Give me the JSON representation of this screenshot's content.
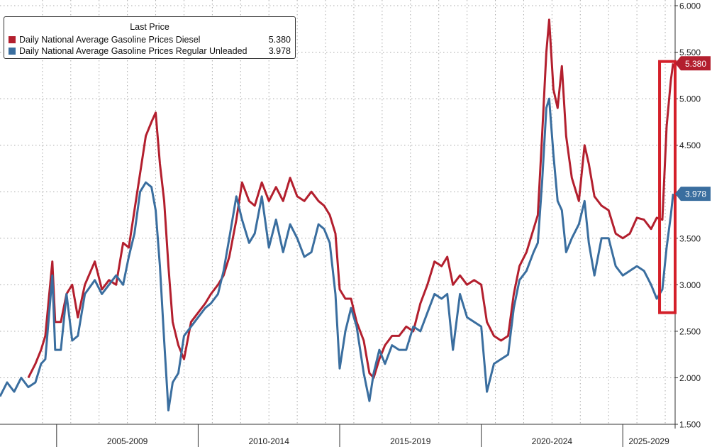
{
  "chart_data": {
    "type": "line",
    "title": "",
    "xlabel": "",
    "ylabel": "",
    "x_period_labels": [
      "2005-2009",
      "2010-2014",
      "2015-2019",
      "2020-2024",
      "2025-2029"
    ],
    "x_range": [
      2003.0,
      2026.85
    ],
    "ylim": [
      1.5,
      6.0
    ],
    "y_ticks": [
      "1.500",
      "2.000",
      "2.500",
      "3.000",
      "3.500",
      "4.000",
      "4.500",
      "5.000",
      "5.500",
      "6.000"
    ],
    "y_axis_position": "right",
    "grid": true,
    "legend": {
      "title": "Last Price",
      "placement": "top-left",
      "items": [
        {
          "name": "Daily National Average Gasoline Prices Diesel",
          "last": "5.380"
        },
        {
          "name": "Daily National Average Gasoline Prices Regular Unleaded",
          "last": "3.978"
        }
      ]
    },
    "highlight_box": {
      "x0": 2026.3,
      "x1": 2026.85,
      "y0": 2.7,
      "y1": 5.4
    },
    "series": [
      {
        "name": "Daily National Average Gasoline Prices Diesel",
        "color": "#b31f2e",
        "last_label": "5.380",
        "points": [
          [
            2004.0,
            2.0
          ],
          [
            2004.25,
            2.15
          ],
          [
            2004.45,
            2.3
          ],
          [
            2004.6,
            2.45
          ],
          [
            2004.85,
            3.25
          ],
          [
            2004.95,
            2.6
          ],
          [
            2005.15,
            2.6
          ],
          [
            2005.35,
            2.9
          ],
          [
            2005.55,
            3.0
          ],
          [
            2005.75,
            2.65
          ],
          [
            2006.0,
            3.0
          ],
          [
            2006.35,
            3.25
          ],
          [
            2006.6,
            2.95
          ],
          [
            2006.85,
            3.05
          ],
          [
            2007.1,
            3.0
          ],
          [
            2007.35,
            3.45
          ],
          [
            2007.55,
            3.4
          ],
          [
            2007.75,
            3.8
          ],
          [
            2007.95,
            4.2
          ],
          [
            2008.15,
            4.6
          ],
          [
            2008.35,
            4.75
          ],
          [
            2008.5,
            4.85
          ],
          [
            2008.65,
            4.3
          ],
          [
            2008.8,
            3.9
          ],
          [
            2008.95,
            3.2
          ],
          [
            2009.1,
            2.6
          ],
          [
            2009.3,
            2.35
          ],
          [
            2009.5,
            2.2
          ],
          [
            2009.75,
            2.6
          ],
          [
            2010.0,
            2.7
          ],
          [
            2010.25,
            2.8
          ],
          [
            2010.45,
            2.9
          ],
          [
            2010.7,
            3.0
          ],
          [
            2010.9,
            3.1
          ],
          [
            2011.1,
            3.3
          ],
          [
            2011.35,
            3.7
          ],
          [
            2011.55,
            4.1
          ],
          [
            2011.8,
            3.9
          ],
          [
            2012.0,
            3.85
          ],
          [
            2012.25,
            4.1
          ],
          [
            2012.5,
            3.9
          ],
          [
            2012.75,
            4.05
          ],
          [
            2013.0,
            3.9
          ],
          [
            2013.25,
            4.15
          ],
          [
            2013.5,
            3.95
          ],
          [
            2013.75,
            3.9
          ],
          [
            2014.0,
            4.0
          ],
          [
            2014.25,
            3.9
          ],
          [
            2014.45,
            3.85
          ],
          [
            2014.65,
            3.75
          ],
          [
            2014.85,
            3.55
          ],
          [
            2015.0,
            2.95
          ],
          [
            2015.2,
            2.85
          ],
          [
            2015.4,
            2.85
          ],
          [
            2015.6,
            2.6
          ],
          [
            2015.85,
            2.4
          ],
          [
            2016.05,
            2.05
          ],
          [
            2016.2,
            2.0
          ],
          [
            2016.4,
            2.2
          ],
          [
            2016.6,
            2.35
          ],
          [
            2016.85,
            2.45
          ],
          [
            2017.1,
            2.45
          ],
          [
            2017.35,
            2.55
          ],
          [
            2017.6,
            2.5
          ],
          [
            2017.85,
            2.8
          ],
          [
            2018.1,
            3.0
          ],
          [
            2018.35,
            3.25
          ],
          [
            2018.6,
            3.2
          ],
          [
            2018.8,
            3.3
          ],
          [
            2019.0,
            3.0
          ],
          [
            2019.25,
            3.1
          ],
          [
            2019.5,
            3.0
          ],
          [
            2019.75,
            3.05
          ],
          [
            2020.0,
            3.0
          ],
          [
            2020.2,
            2.6
          ],
          [
            2020.45,
            2.45
          ],
          [
            2020.7,
            2.4
          ],
          [
            2020.95,
            2.45
          ],
          [
            2021.15,
            2.9
          ],
          [
            2021.35,
            3.2
          ],
          [
            2021.6,
            3.35
          ],
          [
            2021.85,
            3.6
          ],
          [
            2022.0,
            3.75
          ],
          [
            2022.15,
            4.6
          ],
          [
            2022.3,
            5.5
          ],
          [
            2022.4,
            5.85
          ],
          [
            2022.55,
            5.1
          ],
          [
            2022.7,
            4.9
          ],
          [
            2022.85,
            5.35
          ],
          [
            2023.0,
            4.6
          ],
          [
            2023.2,
            4.15
          ],
          [
            2023.45,
            3.9
          ],
          [
            2023.65,
            4.5
          ],
          [
            2023.8,
            4.3
          ],
          [
            2024.0,
            3.95
          ],
          [
            2024.25,
            3.85
          ],
          [
            2024.5,
            3.8
          ],
          [
            2024.75,
            3.55
          ],
          [
            2025.0,
            3.5
          ],
          [
            2025.25,
            3.55
          ],
          [
            2025.5,
            3.72
          ],
          [
            2025.75,
            3.7
          ],
          [
            2026.0,
            3.6
          ],
          [
            2026.2,
            3.72
          ],
          [
            2026.4,
            3.7
          ],
          [
            2026.55,
            4.7
          ],
          [
            2026.7,
            5.2
          ],
          [
            2026.78,
            5.38
          ]
        ]
      },
      {
        "name": "Daily National Average Gasoline Prices Regular Unleaded",
        "color": "#3a6e9f",
        "last_label": "3.978",
        "points": [
          [
            2003.0,
            1.8
          ],
          [
            2003.25,
            1.95
          ],
          [
            2003.5,
            1.85
          ],
          [
            2003.75,
            2.0
          ],
          [
            2004.0,
            1.9
          ],
          [
            2004.25,
            1.95
          ],
          [
            2004.45,
            2.15
          ],
          [
            2004.6,
            2.2
          ],
          [
            2004.85,
            3.1
          ],
          [
            2004.95,
            2.3
          ],
          [
            2005.15,
            2.3
          ],
          [
            2005.35,
            2.9
          ],
          [
            2005.55,
            2.4
          ],
          [
            2005.75,
            2.45
          ],
          [
            2006.0,
            2.9
          ],
          [
            2006.35,
            3.05
          ],
          [
            2006.6,
            2.9
          ],
          [
            2006.85,
            3.0
          ],
          [
            2007.1,
            3.1
          ],
          [
            2007.35,
            3.0
          ],
          [
            2007.55,
            3.3
          ],
          [
            2007.75,
            3.55
          ],
          [
            2007.95,
            4.0
          ],
          [
            2008.15,
            4.1
          ],
          [
            2008.35,
            4.05
          ],
          [
            2008.5,
            3.8
          ],
          [
            2008.65,
            3.2
          ],
          [
            2008.8,
            2.4
          ],
          [
            2008.95,
            1.65
          ],
          [
            2009.1,
            1.95
          ],
          [
            2009.3,
            2.05
          ],
          [
            2009.5,
            2.45
          ],
          [
            2009.75,
            2.55
          ],
          [
            2010.0,
            2.65
          ],
          [
            2010.25,
            2.75
          ],
          [
            2010.45,
            2.8
          ],
          [
            2010.7,
            2.9
          ],
          [
            2010.9,
            3.15
          ],
          [
            2011.1,
            3.5
          ],
          [
            2011.35,
            3.95
          ],
          [
            2011.55,
            3.7
          ],
          [
            2011.8,
            3.45
          ],
          [
            2012.0,
            3.55
          ],
          [
            2012.25,
            3.95
          ],
          [
            2012.5,
            3.4
          ],
          [
            2012.75,
            3.7
          ],
          [
            2013.0,
            3.35
          ],
          [
            2013.25,
            3.65
          ],
          [
            2013.5,
            3.5
          ],
          [
            2013.75,
            3.3
          ],
          [
            2014.0,
            3.35
          ],
          [
            2014.25,
            3.65
          ],
          [
            2014.45,
            3.6
          ],
          [
            2014.65,
            3.45
          ],
          [
            2014.85,
            2.9
          ],
          [
            2015.0,
            2.1
          ],
          [
            2015.2,
            2.5
          ],
          [
            2015.4,
            2.75
          ],
          [
            2015.6,
            2.55
          ],
          [
            2015.85,
            2.05
          ],
          [
            2016.05,
            1.75
          ],
          [
            2016.2,
            2.05
          ],
          [
            2016.4,
            2.3
          ],
          [
            2016.6,
            2.15
          ],
          [
            2016.85,
            2.35
          ],
          [
            2017.1,
            2.3
          ],
          [
            2017.35,
            2.3
          ],
          [
            2017.6,
            2.55
          ],
          [
            2017.85,
            2.5
          ],
          [
            2018.1,
            2.7
          ],
          [
            2018.35,
            2.9
          ],
          [
            2018.6,
            2.85
          ],
          [
            2018.8,
            2.9
          ],
          [
            2019.0,
            2.3
          ],
          [
            2019.25,
            2.9
          ],
          [
            2019.5,
            2.65
          ],
          [
            2019.75,
            2.6
          ],
          [
            2020.0,
            2.55
          ],
          [
            2020.2,
            1.85
          ],
          [
            2020.45,
            2.15
          ],
          [
            2020.7,
            2.2
          ],
          [
            2020.95,
            2.25
          ],
          [
            2021.15,
            2.75
          ],
          [
            2021.35,
            3.05
          ],
          [
            2021.6,
            3.15
          ],
          [
            2021.85,
            3.35
          ],
          [
            2022.0,
            3.45
          ],
          [
            2022.15,
            4.1
          ],
          [
            2022.3,
            4.9
          ],
          [
            2022.4,
            5.0
          ],
          [
            2022.55,
            4.4
          ],
          [
            2022.7,
            3.9
          ],
          [
            2022.85,
            3.8
          ],
          [
            2023.0,
            3.35
          ],
          [
            2023.2,
            3.5
          ],
          [
            2023.45,
            3.65
          ],
          [
            2023.65,
            3.9
          ],
          [
            2023.8,
            3.45
          ],
          [
            2024.0,
            3.1
          ],
          [
            2024.25,
            3.5
          ],
          [
            2024.5,
            3.5
          ],
          [
            2024.75,
            3.2
          ],
          [
            2025.0,
            3.1
          ],
          [
            2025.25,
            3.15
          ],
          [
            2025.5,
            3.2
          ],
          [
            2025.75,
            3.15
          ],
          [
            2026.0,
            3.0
          ],
          [
            2026.2,
            2.85
          ],
          [
            2026.4,
            2.95
          ],
          [
            2026.55,
            3.4
          ],
          [
            2026.7,
            3.75
          ],
          [
            2026.78,
            3.978
          ]
        ]
      }
    ]
  }
}
